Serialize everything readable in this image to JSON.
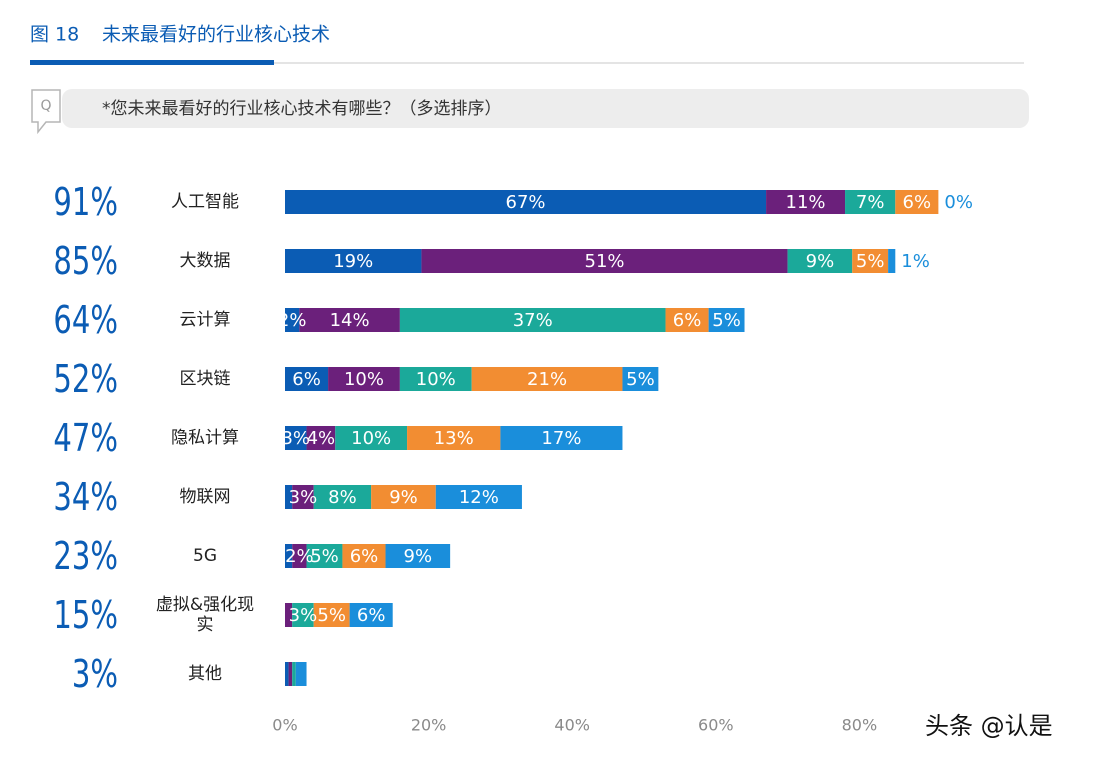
{
  "header": {
    "figure": "图 18",
    "title": "未来最看好的行业核心技术"
  },
  "question": {
    "icon": "Q",
    "text": "*您未来最看好的行业核心技术有哪些？（多选排序）"
  },
  "watermark": "头条 @认是",
  "chart_data": {
    "type": "stacked-bar-horizontal",
    "categories": [
      "人工智能",
      "大数据",
      "云计算",
      "区块链",
      "隐私计算",
      "物联网",
      "5G",
      "虚拟&强化现实",
      "其他"
    ],
    "total_labels": [
      "91%",
      "85%",
      "64%",
      "52%",
      "47%",
      "34%",
      "23%",
      "15%",
      "3%"
    ],
    "series": [
      {
        "color": "#0b5cb4",
        "values": [
          67,
          19,
          2,
          6,
          3,
          1,
          1,
          0,
          0.5
        ],
        "value_labels": [
          "67%",
          "19%",
          "2%",
          "6%",
          "3%",
          null,
          null,
          null,
          null
        ]
      },
      {
        "color": "#6b207b",
        "values": [
          11,
          51,
          14,
          10,
          4,
          3,
          2,
          1,
          0.5
        ],
        "value_labels": [
          "11%",
          "51%",
          "14%",
          "10%",
          "4%",
          "3%",
          "2%",
          null,
          null
        ]
      },
      {
        "color": "#1ba99a",
        "values": [
          7,
          9,
          37,
          10,
          10,
          8,
          5,
          3,
          0.5
        ],
        "value_labels": [
          "7%",
          "9%",
          "37%",
          "10%",
          "10%",
          "8%",
          "5%",
          "3%",
          null
        ]
      },
      {
        "color": "#f28d32",
        "values": [
          6,
          5,
          6,
          21,
          13,
          9,
          6,
          5,
          0
        ],
        "value_labels": [
          "6%",
          "5%",
          "6%",
          "21%",
          "13%",
          "9%",
          "6%",
          "5%",
          null
        ]
      },
      {
        "color": "#1a8edb",
        "values": [
          0,
          1,
          5,
          5,
          17,
          12,
          9,
          6,
          1.5
        ],
        "value_labels": [
          "0%",
          "1%",
          "5%",
          "5%",
          "17%",
          "12%",
          "9%",
          "6%",
          null
        ]
      }
    ],
    "xlim": [
      0,
      100
    ],
    "xticks": [
      {
        "value": 0,
        "label": "0%"
      },
      {
        "value": 20,
        "label": "20%"
      },
      {
        "value": 40,
        "label": "40%"
      },
      {
        "value": 60,
        "label": "60%"
      },
      {
        "value": 80,
        "label": "80%"
      }
    ]
  }
}
